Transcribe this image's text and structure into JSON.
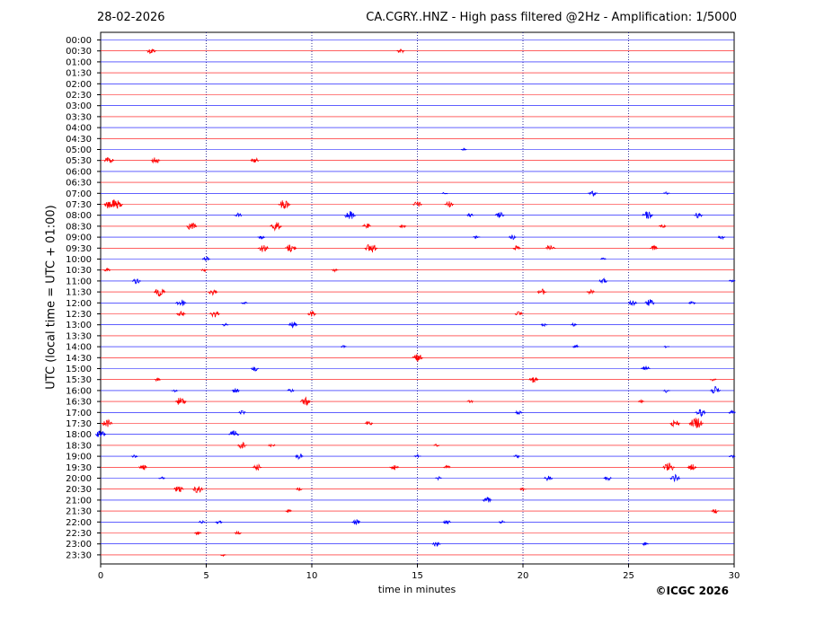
{
  "header": {
    "date": "28-02-2026",
    "station_title": "CA.CGRY..HNZ - High pass filtered @2Hz - Amplification: 1/5000"
  },
  "footer": {
    "copyright": "©ICGC 2026"
  },
  "chart_data": {
    "type": "line",
    "title": "CA.CGRY..HNZ - High pass filtered @2Hz - Amplification: 1/5000",
    "xlabel": "time in minutes",
    "ylabel": "UTC (local time = UTC + 01:00)",
    "xlim": [
      0,
      30
    ],
    "x_ticks": [
      0,
      5,
      10,
      15,
      20,
      25,
      30
    ],
    "grid": "vertical dotted lines at 5-minute intervals",
    "y_tick_labels": [
      "00:00",
      "00:30",
      "01:00",
      "01:30",
      "02:00",
      "02:30",
      "03:00",
      "03:30",
      "04:00",
      "04:30",
      "05:00",
      "05:30",
      "06:00",
      "06:30",
      "07:00",
      "07:30",
      "08:00",
      "08:30",
      "09:00",
      "09:30",
      "10:00",
      "10:30",
      "11:00",
      "11:30",
      "12:00",
      "12:30",
      "13:00",
      "13:30",
      "14:00",
      "14:30",
      "15:00",
      "15:30",
      "16:00",
      "16:30",
      "17:00",
      "17:30",
      "18:00",
      "18:30",
      "19:00",
      "19:30",
      "20:00",
      "20:30",
      "21:00",
      "21:30",
      "22:00",
      "22:30",
      "23:00",
      "23:30"
    ],
    "trace_colors": [
      "#0000ff",
      "#ff0000"
    ],
    "series": [
      {
        "row": "00:00",
        "events": []
      },
      {
        "row": "00:30",
        "events": [
          [
            2.4,
            0.8
          ],
          [
            14.2,
            0.6
          ]
        ]
      },
      {
        "row": "01:00",
        "events": []
      },
      {
        "row": "01:30",
        "events": []
      },
      {
        "row": "02:00",
        "events": []
      },
      {
        "row": "02:30",
        "events": []
      },
      {
        "row": "03:00",
        "events": []
      },
      {
        "row": "03:30",
        "events": []
      },
      {
        "row": "04:00",
        "events": []
      },
      {
        "row": "04:30",
        "events": []
      },
      {
        "row": "05:00",
        "events": [
          [
            17.2,
            0.3
          ]
        ]
      },
      {
        "row": "05:30",
        "events": [
          [
            0.4,
            0.9
          ],
          [
            2.6,
            0.8
          ],
          [
            7.3,
            0.7
          ]
        ]
      },
      {
        "row": "06:00",
        "events": []
      },
      {
        "row": "06:30",
        "events": []
      },
      {
        "row": "07:00",
        "events": [
          [
            16.3,
            0.3
          ],
          [
            23.3,
            0.8
          ],
          [
            26.8,
            0.4
          ]
        ]
      },
      {
        "row": "07:30",
        "events": [
          [
            0.5,
            1.5
          ],
          [
            0.8,
            1.0
          ],
          [
            8.7,
            1.2
          ],
          [
            15.0,
            0.8
          ],
          [
            16.5,
            0.8
          ]
        ]
      },
      {
        "row": "08:00",
        "events": [
          [
            6.5,
            0.6
          ],
          [
            11.8,
            1.1
          ],
          [
            17.5,
            0.5
          ],
          [
            18.9,
            0.8
          ],
          [
            25.9,
            1.0
          ],
          [
            28.3,
            0.8
          ]
        ]
      },
      {
        "row": "08:30",
        "events": [
          [
            4.3,
            1.0
          ],
          [
            8.3,
            1.2
          ],
          [
            12.6,
            0.7
          ],
          [
            14.3,
            0.5
          ],
          [
            26.6,
            0.5
          ]
        ]
      },
      {
        "row": "09:00",
        "events": [
          [
            7.6,
            0.5
          ],
          [
            17.8,
            0.5
          ],
          [
            19.5,
            0.6
          ],
          [
            29.4,
            0.5
          ]
        ]
      },
      {
        "row": "09:30",
        "events": [
          [
            7.7,
            1.0
          ],
          [
            9.0,
            1.1
          ],
          [
            12.8,
            1.3
          ],
          [
            19.7,
            0.6
          ],
          [
            21.3,
            0.9
          ],
          [
            26.2,
            0.6
          ]
        ]
      },
      {
        "row": "10:00",
        "events": [
          [
            5.0,
            0.6
          ],
          [
            23.8,
            0.3
          ]
        ]
      },
      {
        "row": "10:30",
        "events": [
          [
            0.3,
            0.5
          ],
          [
            4.9,
            0.4
          ],
          [
            11.1,
            0.4
          ]
        ]
      },
      {
        "row": "11:00",
        "events": [
          [
            1.7,
            0.7
          ],
          [
            23.8,
            0.7
          ],
          [
            29.9,
            0.4
          ]
        ]
      },
      {
        "row": "11:30",
        "events": [
          [
            2.8,
            1.1
          ],
          [
            5.3,
            0.8
          ],
          [
            20.9,
            0.8
          ],
          [
            23.2,
            0.6
          ]
        ]
      },
      {
        "row": "12:00",
        "events": [
          [
            3.8,
            1.0
          ],
          [
            6.8,
            0.4
          ],
          [
            25.2,
            0.7
          ],
          [
            26.0,
            0.9
          ],
          [
            28.0,
            0.5
          ]
        ]
      },
      {
        "row": "12:30",
        "events": [
          [
            3.8,
            0.8
          ],
          [
            5.4,
            0.9
          ],
          [
            10.0,
            0.7
          ],
          [
            19.8,
            0.6
          ]
        ]
      },
      {
        "row": "13:00",
        "events": [
          [
            5.9,
            0.4
          ],
          [
            9.1,
            0.8
          ],
          [
            21.0,
            0.4
          ],
          [
            22.4,
            0.4
          ]
        ]
      },
      {
        "row": "13:30",
        "events": []
      },
      {
        "row": "14:00",
        "events": [
          [
            11.5,
            0.3
          ],
          [
            22.5,
            0.4
          ],
          [
            26.8,
            0.3
          ]
        ]
      },
      {
        "row": "14:30",
        "events": [
          [
            15.0,
            1.0
          ]
        ]
      },
      {
        "row": "15:00",
        "events": [
          [
            7.3,
            0.6
          ],
          [
            25.8,
            0.8
          ]
        ]
      },
      {
        "row": "15:30",
        "events": [
          [
            2.7,
            0.4
          ],
          [
            20.5,
            0.8
          ],
          [
            29.0,
            0.4
          ]
        ]
      },
      {
        "row": "16:00",
        "events": [
          [
            3.5,
            0.4
          ],
          [
            6.4,
            0.6
          ],
          [
            9.0,
            0.5
          ],
          [
            26.8,
            0.5
          ],
          [
            29.1,
            1.0
          ]
        ]
      },
      {
        "row": "16:30",
        "events": [
          [
            3.8,
            1.1
          ],
          [
            9.7,
            1.0
          ],
          [
            17.5,
            0.4
          ],
          [
            25.6,
            0.4
          ]
        ]
      },
      {
        "row": "17:00",
        "events": [
          [
            6.7,
            0.5
          ],
          [
            19.8,
            0.5
          ],
          [
            28.4,
            1.0
          ],
          [
            29.9,
            0.5
          ]
        ]
      },
      {
        "row": "17:30",
        "events": [
          [
            0.3,
            1.0
          ],
          [
            12.7,
            0.6
          ],
          [
            27.2,
            0.9
          ],
          [
            28.2,
            1.5
          ]
        ]
      },
      {
        "row": "18:00",
        "events": [
          [
            0.0,
            1.0
          ],
          [
            6.3,
            1.0
          ]
        ]
      },
      {
        "row": "18:30",
        "events": [
          [
            6.7,
            0.8
          ],
          [
            8.1,
            0.5
          ],
          [
            15.9,
            0.4
          ]
        ]
      },
      {
        "row": "19:00",
        "events": [
          [
            1.6,
            0.4
          ],
          [
            9.4,
            0.7
          ],
          [
            15.0,
            0.5
          ],
          [
            19.7,
            0.4
          ],
          [
            29.9,
            0.4
          ]
        ]
      },
      {
        "row": "19:30",
        "events": [
          [
            2.0,
            0.7
          ],
          [
            7.4,
            0.8
          ],
          [
            13.9,
            0.8
          ],
          [
            16.4,
            0.5
          ],
          [
            26.9,
            1.2
          ],
          [
            28.0,
            0.8
          ]
        ]
      },
      {
        "row": "20:00",
        "events": [
          [
            2.9,
            0.4
          ],
          [
            16.0,
            0.4
          ],
          [
            21.2,
            0.7
          ],
          [
            24.0,
            0.6
          ],
          [
            27.2,
            0.9
          ]
        ]
      },
      {
        "row": "20:30",
        "events": [
          [
            3.7,
            0.9
          ],
          [
            4.6,
            1.0
          ],
          [
            9.4,
            0.4
          ],
          [
            20.0,
            0.4
          ]
        ]
      },
      {
        "row": "21:00",
        "events": [
          [
            18.3,
            0.8
          ]
        ]
      },
      {
        "row": "21:30",
        "events": [
          [
            8.9,
            0.4
          ],
          [
            29.1,
            0.6
          ]
        ]
      },
      {
        "row": "22:00",
        "events": [
          [
            4.8,
            0.4
          ],
          [
            5.6,
            0.5
          ],
          [
            12.1,
            0.7
          ],
          [
            16.4,
            0.6
          ],
          [
            19.0,
            0.4
          ]
        ]
      },
      {
        "row": "22:30",
        "events": [
          [
            4.6,
            0.5
          ],
          [
            6.5,
            0.5
          ]
        ]
      },
      {
        "row": "23:00",
        "events": [
          [
            15.9,
            0.7
          ],
          [
            25.8,
            0.4
          ]
        ]
      },
      {
        "row": "23:30",
        "events": [
          [
            5.8,
            0.3
          ]
        ]
      }
    ]
  }
}
